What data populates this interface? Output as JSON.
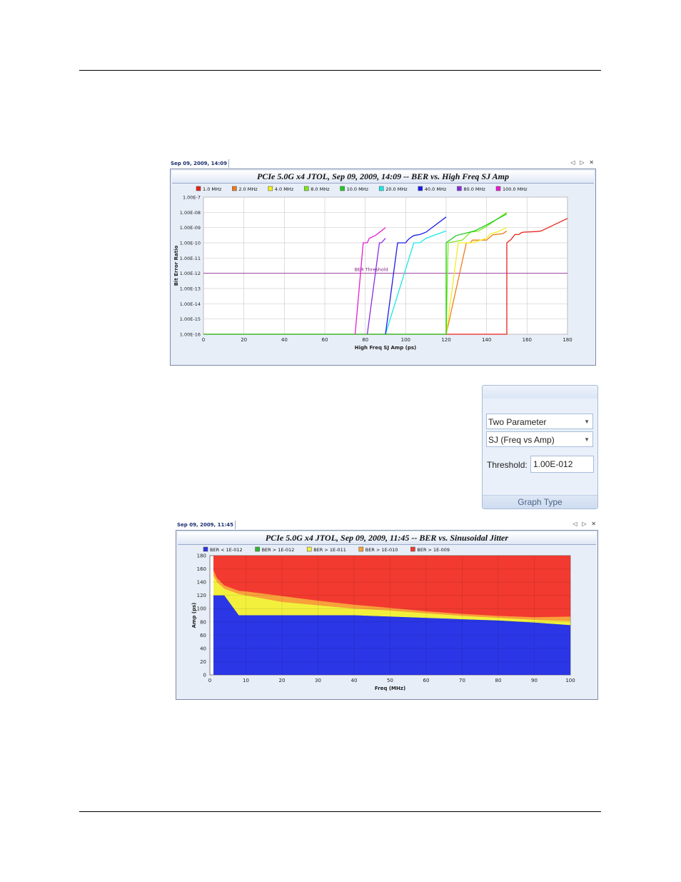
{
  "chart1": {
    "tab_label": "Sep 09, 2009, 14:09",
    "window_controls": "◁ ▷ ✕",
    "title": "PCIe 5.0G x4 JTOL, Sep 09, 2009, 14:09 -- BER vs. High Freq SJ Amp",
    "threshold_label": "BER Threshold"
  },
  "chart2": {
    "tab_label": "Sep 09, 2009, 11:45",
    "window_controls": "◁ ▷ ✕",
    "title": "PCIe 5.0G x4 JTOL, Sep 09, 2009, 11:45 -- BER vs. Sinusoidal Jitter"
  },
  "graph_type": {
    "select1": "Two Parameter",
    "select2": "SJ (Freq vs Amp)",
    "threshold_label": "Threshold:",
    "threshold_value": "1.00E-012",
    "footer": "Graph Type"
  },
  "chart_data": [
    {
      "type": "line",
      "title": "PCIe 5.0G x4 JTOL, Sep 09, 2009, 14:09 -- BER vs. High Freq SJ Amp",
      "xlabel": "High Freq SJ Amp (ps)",
      "ylabel": "Bit Error Ratio",
      "xlim": [
        0,
        180
      ],
      "y_log": true,
      "ylim": [
        1e-16,
        1e-07
      ],
      "x_ticks": [
        "0",
        "20",
        "40",
        "60",
        "80",
        "100",
        "120",
        "140",
        "160",
        "180"
      ],
      "y_ticks": [
        "1.00E-16",
        "1.00E-15",
        "1.00E-14",
        "1.00E-13",
        "1.00E-12",
        "1.00E-11",
        "1.00E-10",
        "1.00E-09",
        "1.00E-08",
        "1.00E-7"
      ],
      "grid": true,
      "legend": "top",
      "threshold": 1e-12,
      "series": [
        {
          "name": "1.0 MHz",
          "color": "#e8221b",
          "points": [
            [
              0,
              1e-16
            ],
            [
              150,
              1e-16
            ],
            [
              150,
              1e-10
            ],
            [
              151,
              1.3e-10
            ],
            [
              152,
              1.6e-10
            ],
            [
              154,
              3.5e-10
            ],
            [
              156,
              3.5e-10
            ],
            [
              157,
              4.5e-10
            ],
            [
              158,
              5e-10
            ],
            [
              165,
              5.5e-10
            ],
            [
              167,
              6e-10
            ],
            [
              180,
              4e-09
            ]
          ]
        },
        {
          "name": "2.0 MHz",
          "color": "#f07c1c",
          "points": [
            [
              120,
              1e-16
            ],
            [
              130,
              1e-10
            ],
            [
              131,
              1e-10
            ],
            [
              132,
              1e-10
            ],
            [
              133,
              1.5e-10
            ],
            [
              140,
              1.5e-10
            ],
            [
              143,
              3.3e-10
            ],
            [
              148,
              4e-10
            ],
            [
              150,
              6e-10
            ]
          ]
        },
        {
          "name": "4.0 MHz",
          "color": "#f2f01c",
          "points": [
            [
              120,
              1e-16
            ],
            [
              126,
              1e-10
            ],
            [
              133,
              1e-10
            ],
            [
              140,
              2e-10
            ],
            [
              142,
              4e-10
            ],
            [
              145,
              5e-10
            ],
            [
              150,
              1e-09
            ]
          ]
        },
        {
          "name": "8.0 MHz",
          "color": "#7ee81c",
          "points": [
            [
              120,
              1e-16
            ],
            [
              121,
              1e-10
            ],
            [
              128,
              1.5e-10
            ],
            [
              132,
              5e-10
            ],
            [
              136,
              6e-10
            ],
            [
              140,
              1.2e-09
            ],
            [
              150,
              1e-08
            ]
          ]
        },
        {
          "name": "10.0 MHz",
          "color": "#1ccc1c",
          "points": [
            [
              0,
              1e-16
            ],
            [
              120,
              1e-16
            ],
            [
              120,
              1e-10
            ],
            [
              125,
              3e-10
            ],
            [
              134,
              6e-10
            ],
            [
              140,
              1.5e-09
            ],
            [
              150,
              8e-09
            ]
          ]
        },
        {
          "name": "20.0 MHz",
          "color": "#1ce8e8",
          "points": [
            [
              90,
              1e-16
            ],
            [
              104,
              1e-10
            ],
            [
              107,
              1e-10
            ],
            [
              110,
              2e-10
            ],
            [
              120,
              6e-10
            ]
          ]
        },
        {
          "name": "40.0 MHz",
          "color": "#1c1ce8",
          "points": [
            [
              90,
              1e-16
            ],
            [
              96,
              1e-10
            ],
            [
              100,
              1e-10
            ],
            [
              101,
              1.5e-10
            ],
            [
              102,
              2e-10
            ],
            [
              104,
              3e-10
            ],
            [
              107,
              3.5e-10
            ],
            [
              110,
              5e-10
            ],
            [
              120,
              5e-09
            ]
          ]
        },
        {
          "name": "80.0 MHz",
          "color": "#8a2be2",
          "points": [
            [
              81,
              1e-16
            ],
            [
              87,
              1e-10
            ],
            [
              88,
              1e-10
            ],
            [
              90,
              2e-10
            ]
          ]
        },
        {
          "name": "100.0 MHz",
          "color": "#e81cd0",
          "points": [
            [
              75,
              1e-16
            ],
            [
              79,
              1e-10
            ],
            [
              81,
              1e-10
            ],
            [
              82,
              2e-10
            ],
            [
              85,
              3e-10
            ],
            [
              90,
              1e-09
            ]
          ]
        }
      ]
    },
    {
      "type": "area",
      "title": "PCIe 5.0G x4 JTOL, Sep 09, 2009, 11:45 -- BER vs. Sinusoidal Jitter",
      "xlabel": "Freq (MHz)",
      "ylabel": "Amp (ps)",
      "xlim": [
        0,
        100
      ],
      "ylim": [
        0,
        180
      ],
      "x_ticks": [
        "0",
        "10",
        "20",
        "30",
        "40",
        "50",
        "60",
        "70",
        "80",
        "90",
        "100"
      ],
      "y_ticks": [
        "0",
        "20",
        "40",
        "60",
        "80",
        "100",
        "120",
        "140",
        "160",
        "180"
      ],
      "grid": true,
      "legend": "top",
      "x": [
        1,
        2,
        4,
        6,
        8,
        10,
        20,
        30,
        40,
        50,
        60,
        70,
        80,
        90,
        100
      ],
      "series": [
        {
          "name": "BER < 1E-012",
          "color": "#2b36e6",
          "values": [
            120,
            120,
            120,
            105,
            90,
            90,
            90,
            90,
            90,
            88,
            86,
            84,
            82,
            79,
            75
          ]
        },
        {
          "name": "BER > 1E-012",
          "color": "#2db82d",
          "values": [
            120,
            120,
            120,
            105,
            90,
            90,
            90,
            90,
            90,
            88,
            86,
            84,
            82,
            79,
            75
          ]
        },
        {
          "name": "BER > 1E-011",
          "color": "#f2f03c",
          "values": [
            150,
            140,
            130,
            126,
            122,
            120,
            110,
            105,
            100,
            97,
            93,
            89,
            86,
            83,
            81
          ]
        },
        {
          "name": "BER > 1E-010",
          "color": "#f7a13a",
          "values": [
            158,
            146,
            135,
            131,
            127,
            126,
            119,
            112,
            106,
            101,
            96,
            92,
            89,
            87,
            88
          ]
        },
        {
          "name": "BER > 1E-009",
          "color": "#f23a30",
          "values": [
            180,
            180,
            180,
            180,
            180,
            180,
            180,
            180,
            180,
            180,
            180,
            180,
            180,
            180,
            180
          ]
        }
      ]
    }
  ]
}
